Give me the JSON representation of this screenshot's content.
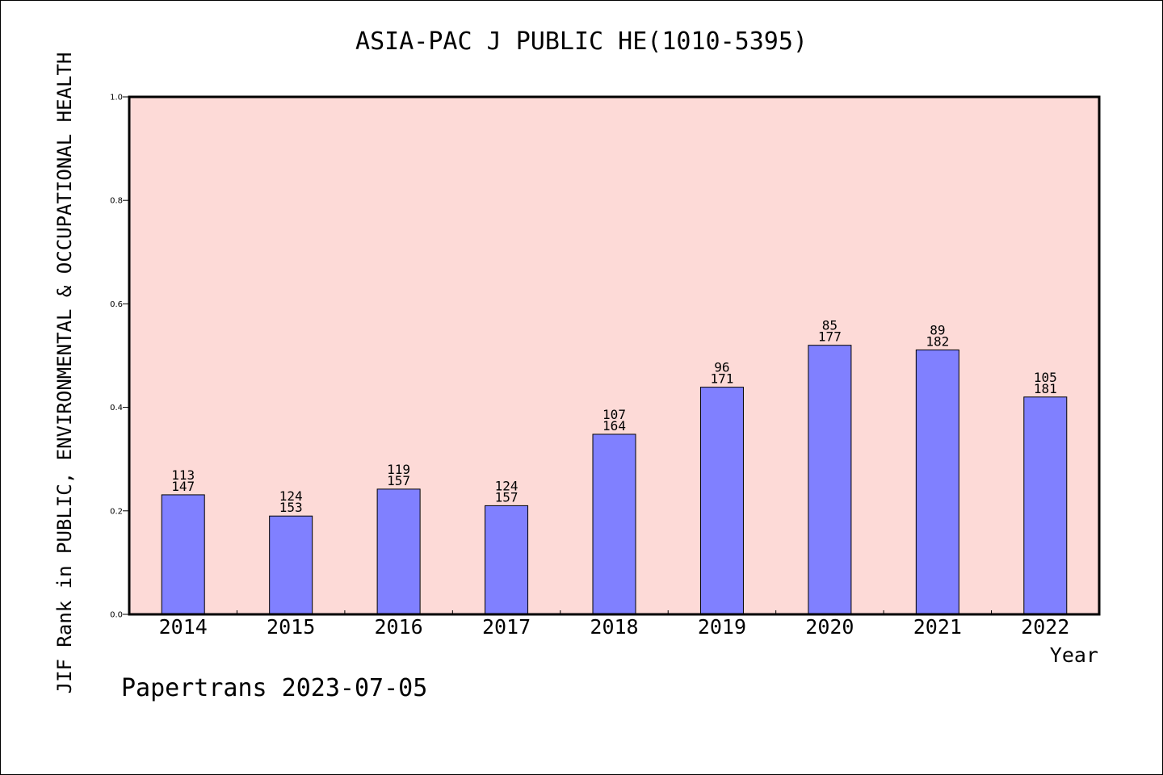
{
  "chart_data": {
    "type": "bar",
    "title": "ASIA-PAC J PUBLIC HE(1010-5395)",
    "xlabel": "Year",
    "ylabel": "JIF Rank in PUBLIC, ENVIRONMENTAL & OCCUPATIONAL HEALTH",
    "ylim": [
      0.0,
      1.0
    ],
    "yticks": [
      "0.0",
      "0.2",
      "0.4",
      "0.6",
      "0.8",
      "1.0"
    ],
    "categories": [
      "2014",
      "2015",
      "2016",
      "2017",
      "2018",
      "2019",
      "2020",
      "2021",
      "2022"
    ],
    "values": [
      0.231,
      0.19,
      0.242,
      0.21,
      0.348,
      0.439,
      0.52,
      0.511,
      0.42
    ],
    "rank": [
      "113",
      "124",
      "119",
      "124",
      "107",
      "96",
      "85",
      "89",
      "105"
    ],
    "total": [
      "147",
      "153",
      "157",
      "157",
      "164",
      "171",
      "177",
      "182",
      "181"
    ],
    "grid": false,
    "colors": {
      "plot_background": "#fddad7",
      "bar_fill": "#8080ff",
      "bar_stroke": "#000000"
    }
  },
  "footer": "Papertrans 2023-07-05"
}
